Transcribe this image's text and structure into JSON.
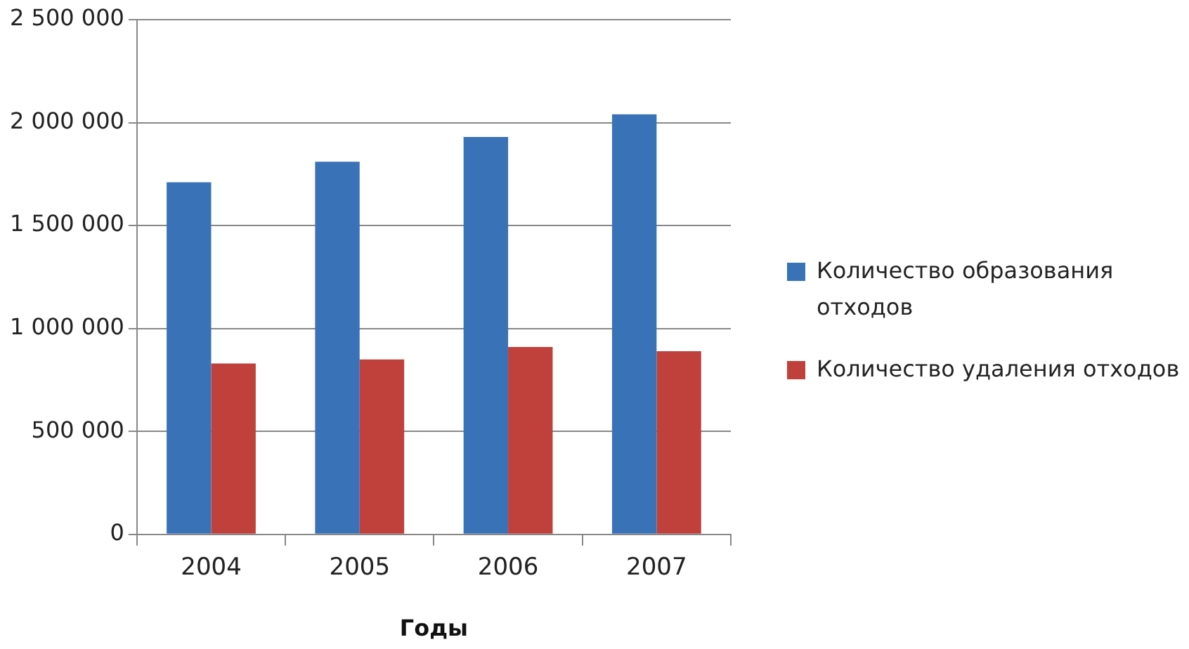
{
  "chart_data": {
    "type": "bar",
    "xlabel": "Годы",
    "categories": [
      "2004",
      "2005",
      "2006",
      "2007"
    ],
    "series": [
      {
        "name": "Количество образования отходов",
        "color": "#3a72b8",
        "values": [
          1710000,
          1810000,
          1930000,
          2040000
        ]
      },
      {
        "name": "Количество удаления отходов",
        "color": "#c0403c",
        "values": [
          830000,
          850000,
          910000,
          890000
        ]
      }
    ],
    "ylim": [
      0,
      2500000
    ],
    "yticks": [
      {
        "value": 0,
        "label": "0"
      },
      {
        "value": 500000,
        "label": "500 000"
      },
      {
        "value": 1000000,
        "label": "1 000 000"
      },
      {
        "value": 1500000,
        "label": "1 500 000"
      },
      {
        "value": 2000000,
        "label": "2 000 000"
      },
      {
        "value": 2500000,
        "label": "2 500 000"
      }
    ],
    "grid": "y",
    "legend": "right"
  }
}
